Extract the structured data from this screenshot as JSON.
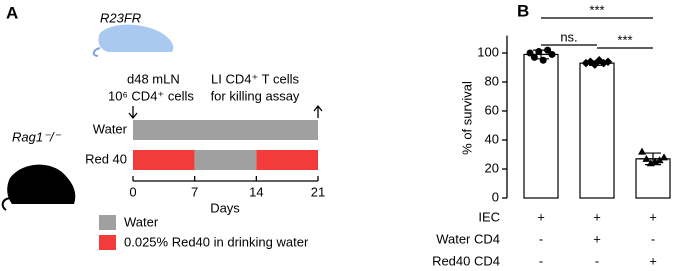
{
  "panel_a": {
    "panel_label": "A",
    "donor": "R23FR",
    "recipient": "Rag1⁻/⁻",
    "transfer_line1": "d48 mLN",
    "transfer_line2": "10⁶ CD4⁺ cells",
    "harvest_line1": "LI CD4⁺ T cells",
    "harvest_line2": "for killing assay",
    "timeline": {
      "xlim": [
        0,
        21
      ],
      "xticks": [
        0,
        7,
        14,
        21
      ],
      "xlabel": "Days",
      "rows": [
        {
          "name": "Water",
          "segments": [
            {
              "start": 0,
              "end": 21,
              "color": "#a0a0a0"
            }
          ]
        },
        {
          "name": "Red 40",
          "segments": [
            {
              "start": 0,
              "end": 7,
              "color": "#f23c3c"
            },
            {
              "start": 7,
              "end": 14,
              "color": "#a0a0a0"
            },
            {
              "start": 14,
              "end": 21,
              "color": "#f23c3c"
            }
          ]
        }
      ]
    },
    "legend": [
      {
        "name": "Water",
        "color": "#a0a0a0"
      },
      {
        "name": "0.025% Red40 in drinking water",
        "color": "#f23c3c"
      }
    ]
  },
  "chart_data": {
    "type": "bar",
    "panel_label": "B",
    "ylabel": "% of survival",
    "values": [
      99,
      93,
      27
    ],
    "errors": [
      3,
      1.5,
      4
    ],
    "points": [
      [
        100,
        97,
        101,
        95,
        102,
        99
      ],
      [
        93,
        94,
        92,
        95,
        93,
        94
      ],
      [
        32,
        27,
        24,
        25,
        26,
        28
      ]
    ],
    "color": "#ffffff",
    "ylim": [
      0,
      112
    ],
    "yticks": [
      0,
      20,
      40,
      60,
      80,
      100
    ],
    "significance": [
      "***",
      "ns.",
      "***"
    ],
    "conditions": [
      {
        "name": "IEC",
        "signs": [
          "+",
          "+",
          "+"
        ]
      },
      {
        "name": "Water CD4",
        "signs": [
          "-",
          "+",
          "-"
        ]
      },
      {
        "name": "Red40 CD4",
        "signs": [
          "-",
          "-",
          "+"
        ]
      }
    ]
  }
}
